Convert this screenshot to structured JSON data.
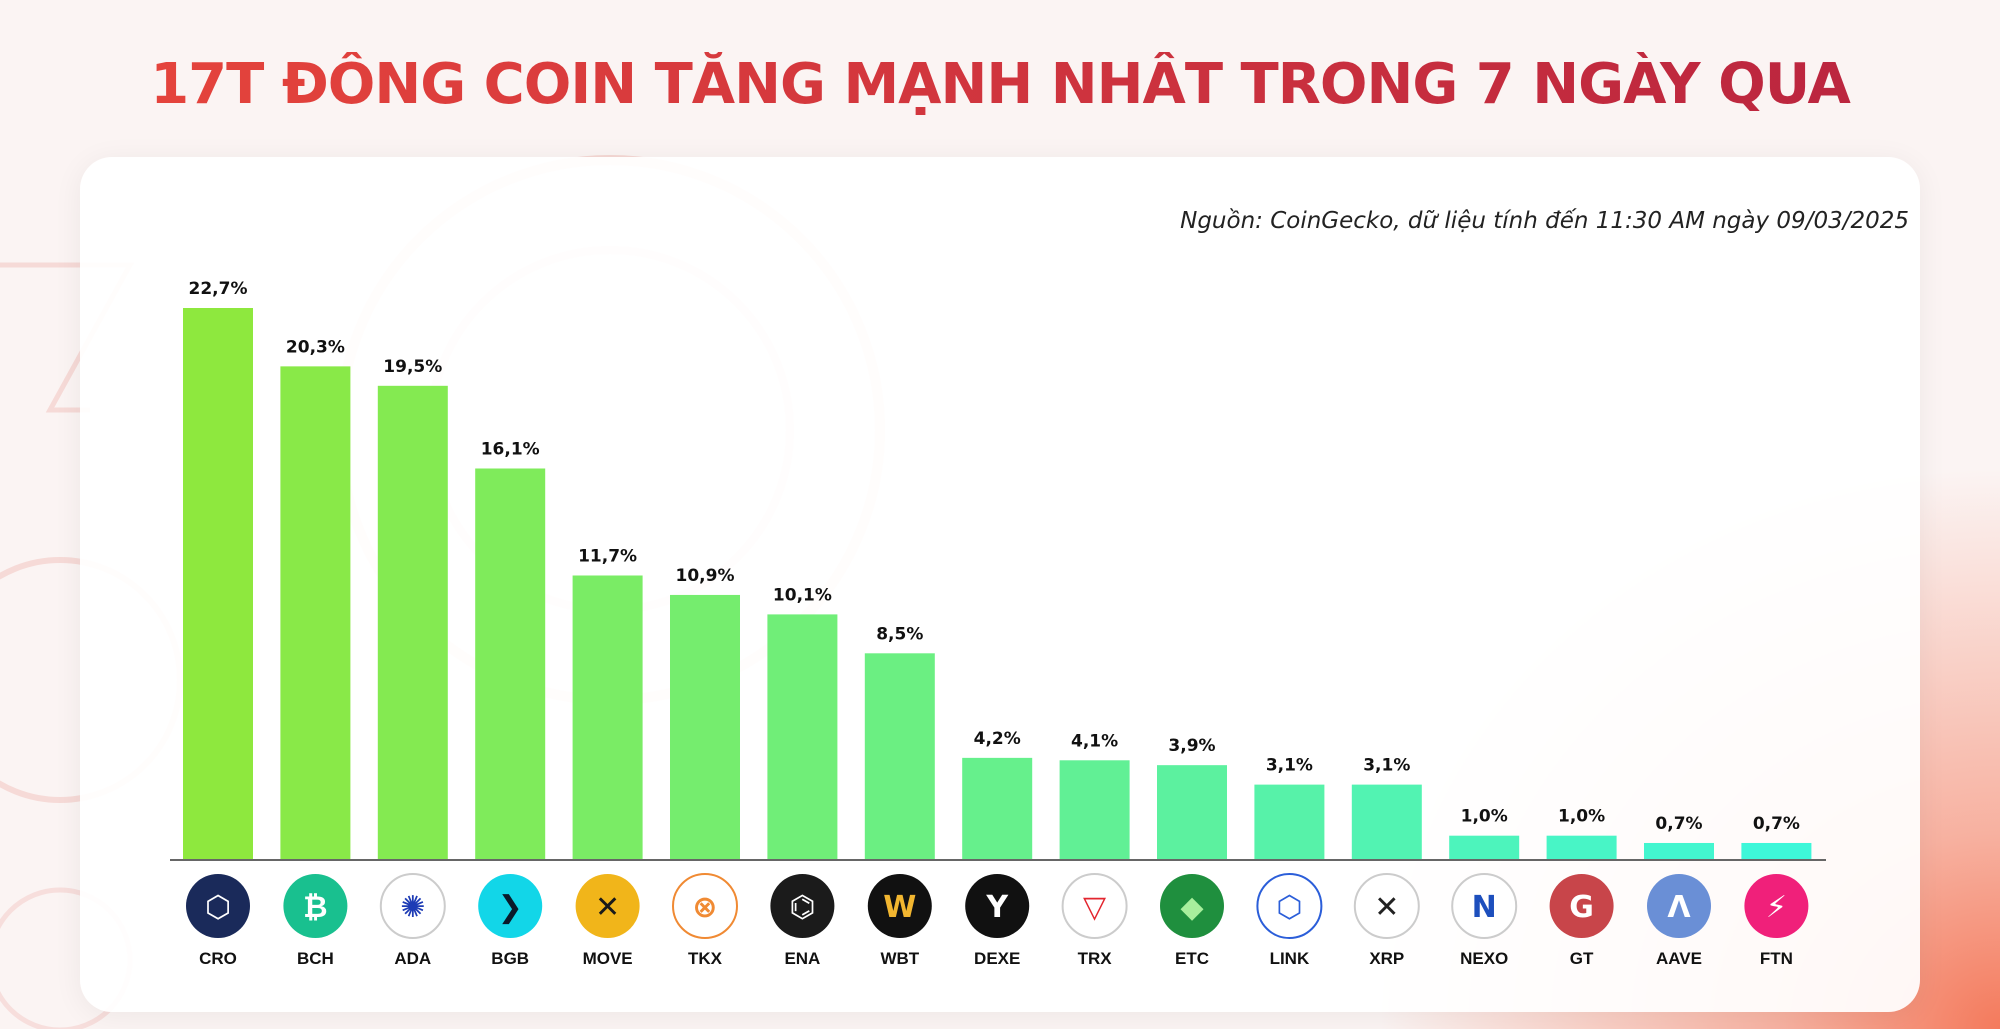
{
  "title": "17T ĐỒNG COIN TĂNG MẠNH NHẤT TRONG 7 NGÀY QUA",
  "source": "Nguồn: CoinGecko, dữ liệu tính đến 11:30 AM ngày 09/03/2025",
  "colors": {
    "title_left": "#e8463c",
    "title_right": "#b8233f",
    "bar_start": "#8ee83e",
    "bar_end": "#3ef7d9",
    "axis": "#666666"
  },
  "chart_data": {
    "type": "bar",
    "categories": [
      "CRO",
      "BCH",
      "ADA",
      "BGB",
      "MOVE",
      "TKX",
      "ENA",
      "WBT",
      "DEXE",
      "TRX",
      "ETC",
      "LINK",
      "XRP",
      "NEXO",
      "GT",
      "AAVE",
      "FTN"
    ],
    "values": [
      22.7,
      20.3,
      19.5,
      16.1,
      11.7,
      10.9,
      10.1,
      8.5,
      4.2,
      4.1,
      3.9,
      3.1,
      3.1,
      1.0,
      1.0,
      0.7,
      0.7
    ],
    "labels": [
      "22,7%",
      "20,3%",
      "19,5%",
      "16,1%",
      "11,7%",
      "10,9%",
      "10,1%",
      "8,5%",
      "4,2%",
      "4,1%",
      "3,9%",
      "3,1%",
      "3,1%",
      "1,0%",
      "1,0%",
      "0,7%",
      "0,7%"
    ],
    "ylim": [
      0,
      22.7
    ],
    "grid": false,
    "legend": "none",
    "icons": [
      "cro-icon",
      "bch-icon",
      "ada-icon",
      "bgb-icon",
      "move-icon",
      "tkx-icon",
      "ena-icon",
      "wbt-icon",
      "dexe-icon",
      "trx-icon",
      "etc-icon",
      "link-icon",
      "xrp-icon",
      "nexo-icon",
      "gt-icon",
      "aave-icon",
      "ftn-icon"
    ]
  }
}
